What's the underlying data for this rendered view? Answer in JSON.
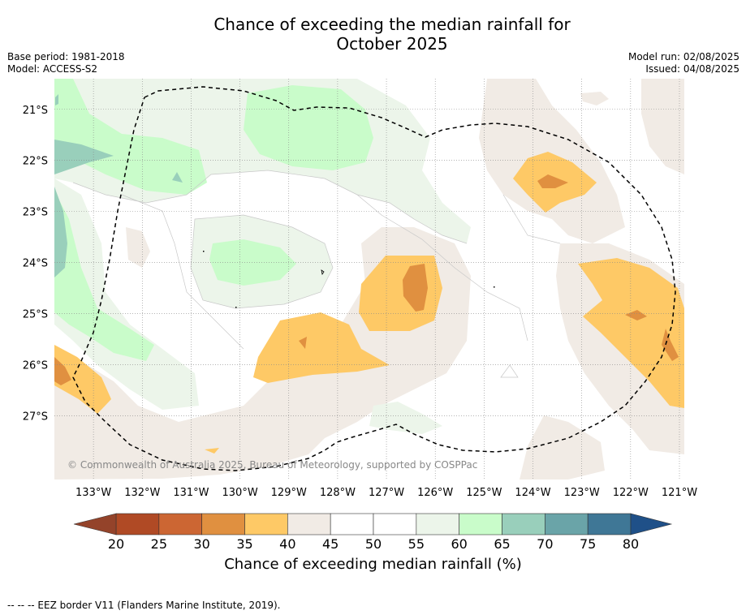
{
  "title_line1": "Chance of exceeding the median rainfall for",
  "title_line2": "October 2025",
  "base_period": "Base period: 1981-2018",
  "model": "Model: ACCESS-S2",
  "model_run": "Model run: 02/08/2025",
  "issued": "Issued: 04/08/2025",
  "copyright": "© Commonwealth of Australia 2025, Bureau of Meteorology, supported by COSPPac",
  "map": {
    "lon_labels": [
      "133°W",
      "132°W",
      "131°W",
      "130°W",
      "129°W",
      "128°W",
      "127°W",
      "126°W",
      "125°W",
      "124°W",
      "123°W",
      "122°W",
      "121°W"
    ],
    "lat_labels": [
      "21°S",
      "22°S",
      "23°S",
      "24°S",
      "25°S",
      "26°S",
      "27°S"
    ],
    "lon_values": [
      -133,
      -132,
      -131,
      -130,
      -129,
      -128,
      -127,
      -126,
      -125,
      -124,
      -123,
      -122,
      -121
    ],
    "lat_values": [
      -21,
      -22,
      -23,
      -24,
      -25,
      -26,
      -27
    ],
    "extent": {
      "lon_min": -133.8,
      "lon_max": -120.9,
      "lat_min": -28.25,
      "lat_max": -20.4
    },
    "gridlines": true
  },
  "colorbar": {
    "label": "Chance of exceeding median rainfall (%)",
    "ticks": [
      "20",
      "25",
      "30",
      "35",
      "40",
      "45",
      "50",
      "55",
      "60",
      "65",
      "70",
      "75",
      "80"
    ],
    "tick_values": [
      20,
      25,
      30,
      35,
      40,
      45,
      50,
      55,
      60,
      65,
      70,
      75,
      80
    ],
    "colors": [
      "#b04a25",
      "#cc6633",
      "#e09040",
      "#fec966",
      "#f1ebe5",
      "#ffffff",
      "#ffffff",
      "#ecf5ea",
      "#c9fcca",
      "#99cfbb",
      "#6aa4a8",
      "#3f7796"
    ],
    "extend_low_color": "#94432a",
    "extend_high_color": "#1f5088"
  },
  "legend_note": "--  --  -- EEZ border V11 (Flanders Marine Institute, 2019)."
}
